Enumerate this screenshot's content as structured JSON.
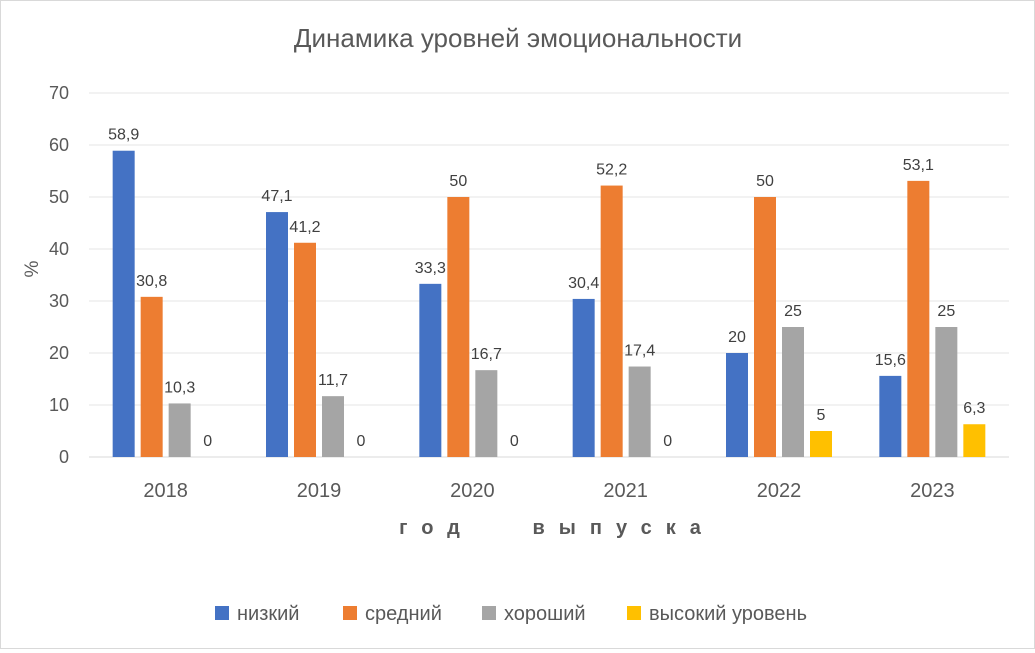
{
  "chart_data": {
    "type": "bar",
    "title": "Динамика уровней эмоциональности",
    "xlabel": "год   выпуска",
    "ylabel": "%",
    "ylim": [
      0,
      70
    ],
    "yticks": [
      0,
      10,
      20,
      30,
      40,
      50,
      60,
      70
    ],
    "grid": true,
    "legend_position": "bottom",
    "categories": [
      "2018",
      "2019",
      "2020",
      "2021",
      "2022",
      "2023"
    ],
    "series": [
      {
        "name": "низкий",
        "color": "#4472C4",
        "values": [
          58.9,
          47.1,
          33.3,
          30.4,
          20,
          15.6
        ],
        "labels": [
          "58,9",
          "47,1",
          "33,3",
          "30,4",
          "20",
          "15,6"
        ]
      },
      {
        "name": "средний",
        "color": "#ED7D31",
        "values": [
          30.8,
          41.2,
          50,
          52.2,
          50,
          53.1
        ],
        "labels": [
          "30,8",
          "41,2",
          "50",
          "52,2",
          "50",
          "53,1"
        ]
      },
      {
        "name": "хороший",
        "color": "#A5A5A5",
        "values": [
          10.3,
          11.7,
          16.7,
          17.4,
          25,
          25
        ],
        "labels": [
          "10,3",
          "11,7",
          "16,7",
          "17,4",
          "25",
          "25"
        ]
      },
      {
        "name": "высокий уровень",
        "color": "#FFC000",
        "values": [
          0,
          0,
          0,
          0,
          5,
          6.3
        ],
        "labels": [
          "0",
          "0",
          "0",
          "0",
          "5",
          "6,3"
        ]
      }
    ]
  }
}
